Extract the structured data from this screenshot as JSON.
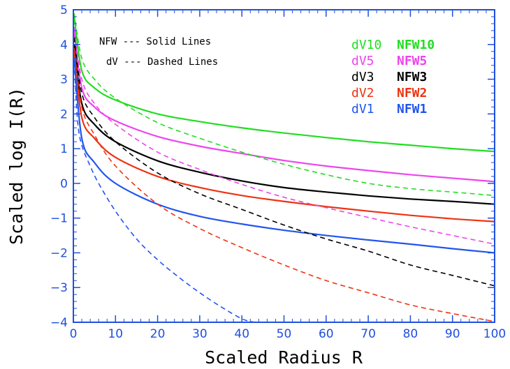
{
  "chart_data": {
    "type": "line",
    "title": "",
    "xlabel": "Scaled Radius R",
    "ylabel": "Scaled log I(R)",
    "xlim": [
      0,
      100
    ],
    "ylim": [
      -4,
      5
    ],
    "xticks": [
      0,
      10,
      20,
      30,
      40,
      50,
      60,
      70,
      80,
      90,
      100
    ],
    "yticks": [
      -4,
      -3,
      -2,
      -1,
      0,
      1,
      2,
      3,
      4,
      5
    ],
    "xtick_labels": [
      "0",
      "10",
      "20",
      "30",
      "40",
      "50",
      "60",
      "70",
      "80",
      "90",
      "100"
    ],
    "ytick_labels": [
      "-4",
      "-3",
      "-2",
      "-1",
      "0",
      "1",
      "2",
      "3",
      "4",
      "5"
    ],
    "grid": false,
    "notes": [
      "NFW --- Solid Lines",
      "dV --- Dashed Lines"
    ],
    "legend_placement": "top-right",
    "legend_rows": [
      {
        "dv": "dV10",
        "nfw": "NFW10",
        "color": "#22dd22"
      },
      {
        "dv": "dV5",
        "nfw": "NFW5",
        "color": "#ee44ee"
      },
      {
        "dv": "dV3",
        "nfw": "NFW3",
        "color": "#000000"
      },
      {
        "dv": "dV2",
        "nfw": "NFW2",
        "color": "#ee3311"
      },
      {
        "dv": "dV1",
        "nfw": "NFW1",
        "color": "#2255ee"
      }
    ],
    "series": [
      {
        "name": "NFW10",
        "style": "solid",
        "color": "#22dd22",
        "x": [
          0.2,
          2,
          5,
          10,
          20,
          30,
          40,
          50,
          60,
          70,
          80,
          90,
          100
        ],
        "y": [
          4.8,
          3.25,
          2.75,
          2.4,
          2.0,
          1.78,
          1.6,
          1.45,
          1.32,
          1.2,
          1.1,
          1.0,
          0.92
        ]
      },
      {
        "name": "NFW5",
        "style": "solid",
        "color": "#ee44ee",
        "x": [
          0.2,
          2,
          5,
          10,
          20,
          30,
          40,
          50,
          60,
          70,
          80,
          90,
          100
        ],
        "y": [
          4.4,
          2.75,
          2.2,
          1.8,
          1.35,
          1.07,
          0.86,
          0.66,
          0.5,
          0.37,
          0.25,
          0.15,
          0.05
        ]
      },
      {
        "name": "NFW3",
        "style": "solid",
        "color": "#000000",
        "x": [
          0.2,
          2,
          5,
          10,
          20,
          30,
          40,
          50,
          60,
          70,
          80,
          90,
          100
        ],
        "y": [
          4.0,
          2.3,
          1.7,
          1.2,
          0.65,
          0.32,
          0.07,
          -0.12,
          -0.25,
          -0.36,
          -0.45,
          -0.52,
          -0.6
        ]
      },
      {
        "name": "NFW2",
        "style": "solid",
        "color": "#ee3311",
        "x": [
          0.2,
          2,
          5,
          10,
          20,
          30,
          40,
          50,
          60,
          70,
          80,
          90,
          100
        ],
        "y": [
          3.8,
          1.9,
          1.3,
          0.75,
          0.2,
          -0.12,
          -0.35,
          -0.52,
          -0.67,
          -0.8,
          -0.92,
          -1.02,
          -1.1
        ]
      },
      {
        "name": "NFW1",
        "style": "solid",
        "color": "#2255ee",
        "x": [
          0.2,
          2,
          5,
          10,
          20,
          30,
          40,
          50,
          60,
          70,
          80,
          90,
          100
        ],
        "y": [
          3.6,
          1.3,
          0.6,
          0.0,
          -0.6,
          -0.95,
          -1.17,
          -1.35,
          -1.5,
          -1.63,
          -1.75,
          -1.88,
          -2.0
        ]
      },
      {
        "name": "dV10",
        "style": "dashed",
        "color": "#22dd22",
        "x": [
          0.2,
          2,
          5,
          10,
          20,
          30,
          40,
          50,
          60,
          70,
          80,
          90,
          100
        ],
        "y": [
          4.9,
          3.6,
          3.0,
          2.45,
          1.75,
          1.3,
          0.9,
          0.55,
          0.25,
          0.0,
          -0.15,
          -0.25,
          -0.35
        ]
      },
      {
        "name": "dV5",
        "style": "dashed",
        "color": "#ee44ee",
        "x": [
          0.2,
          2,
          5,
          10,
          20,
          30,
          40,
          50,
          60,
          70,
          80,
          90,
          100
        ],
        "y": [
          4.5,
          3.0,
          2.3,
          1.7,
          0.9,
          0.4,
          -0.03,
          -0.4,
          -0.7,
          -0.98,
          -1.25,
          -1.5,
          -1.75
        ]
      },
      {
        "name": "dV3",
        "style": "dashed",
        "color": "#000000",
        "x": [
          0.2,
          2,
          5,
          10,
          20,
          30,
          40,
          50,
          60,
          70,
          80,
          90,
          100
        ],
        "y": [
          4.2,
          2.6,
          1.9,
          1.2,
          0.3,
          -0.3,
          -0.75,
          -1.2,
          -1.6,
          -1.95,
          -2.35,
          -2.65,
          -2.95
        ]
      },
      {
        "name": "dV2",
        "style": "dashed",
        "color": "#ee3311",
        "x": [
          0.2,
          2,
          5,
          10,
          20,
          30,
          40,
          50,
          60,
          70,
          80,
          90,
          100
        ],
        "y": [
          3.9,
          2.2,
          1.4,
          0.5,
          -0.6,
          -1.3,
          -1.85,
          -2.35,
          -2.8,
          -3.15,
          -3.5,
          -3.75,
          -3.98
        ]
      },
      {
        "name": "dV1",
        "style": "dashed",
        "color": "#2255ee",
        "x": [
          0.2,
          1,
          2,
          4,
          6,
          10,
          15,
          20,
          25,
          30,
          35,
          40,
          43
        ],
        "y": [
          3.5,
          1.8,
          1.1,
          0.5,
          0.0,
          -0.8,
          -1.6,
          -2.2,
          -2.7,
          -3.15,
          -3.55,
          -3.9,
          -4.0
        ]
      }
    ]
  }
}
